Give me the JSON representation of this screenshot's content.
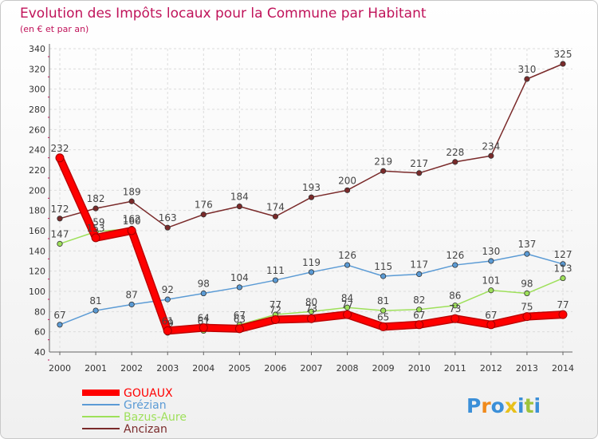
{
  "chart_data": {
    "type": "line",
    "title": "Evolution des Impôts locaux pour la Commune par Habitant",
    "subtitle": "(en € et par an)",
    "xlabel": "",
    "ylabel": "",
    "categories": [
      "2000",
      "2001",
      "2002",
      "2003",
      "2004",
      "2005",
      "2006",
      "2007",
      "2008",
      "2009",
      "2010",
      "2011",
      "2012",
      "2013",
      "2014"
    ],
    "ylim": [
      40,
      340
    ],
    "yticks": [
      40,
      60,
      80,
      100,
      120,
      140,
      160,
      180,
      200,
      220,
      240,
      260,
      280,
      300,
      320,
      340
    ],
    "grid": true,
    "legend_position": "bottom-left",
    "series": [
      {
        "name": "GOUAUX",
        "color": "#ff0000",
        "values": [
          232,
          153,
          160,
          61,
          64,
          63,
          72,
          73,
          77,
          65,
          67,
          73,
          67,
          75,
          77
        ]
      },
      {
        "name": "Grézian",
        "color": "#5b9bd5",
        "values": [
          67,
          81,
          87,
          92,
          98,
          104,
          111,
          119,
          126,
          115,
          117,
          126,
          130,
          137,
          127
        ]
      },
      {
        "name": "Bazus-Aure",
        "color": "#9ee05a",
        "values": [
          147,
          159,
          162,
          59,
          61,
          67,
          77,
          80,
          84,
          81,
          82,
          86,
          101,
          98,
          113
        ]
      },
      {
        "name": "Ancizan",
        "color": "#7a2a2a",
        "values": [
          172,
          182,
          189,
          163,
          176,
          184,
          174,
          193,
          200,
          219,
          217,
          228,
          234,
          310,
          325
        ]
      }
    ]
  },
  "brand": {
    "logo_text": "Proxiti"
  }
}
